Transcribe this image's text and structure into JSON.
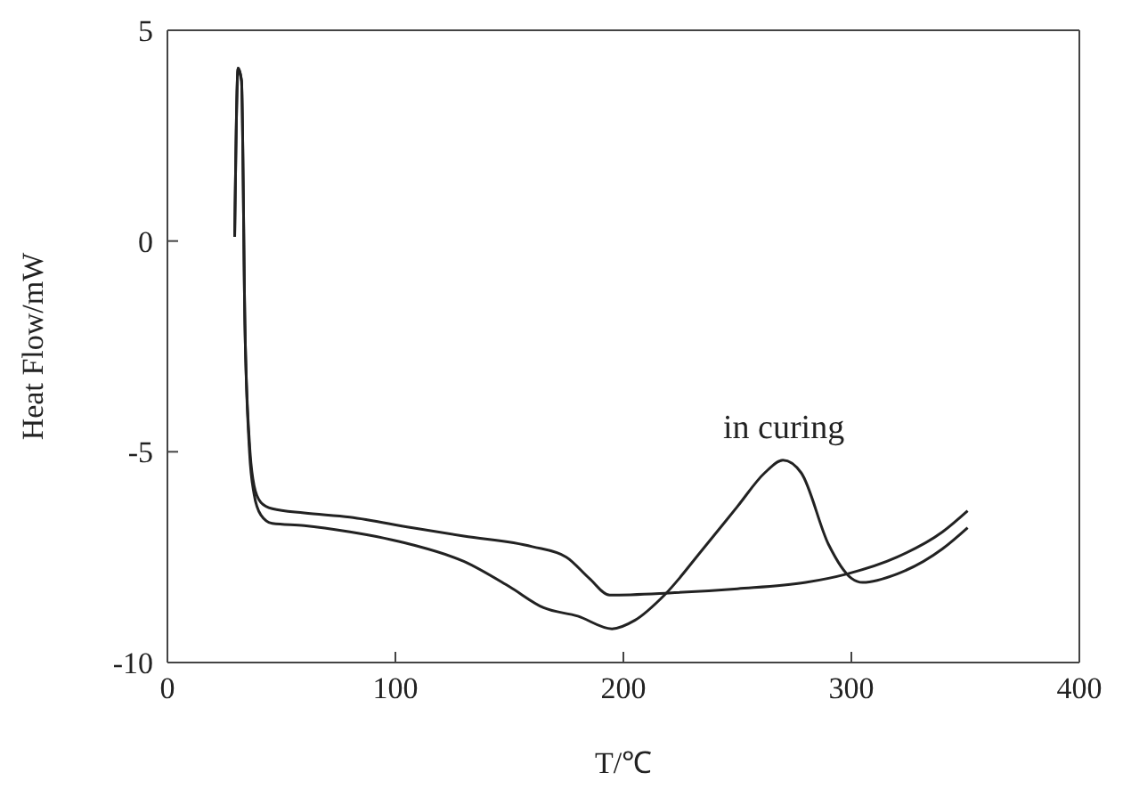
{
  "chart_data": {
    "type": "line",
    "xlabel": "T/℃",
    "ylabel": "Heat Flow/mW",
    "xlim": [
      0,
      400
    ],
    "xticks": [
      0,
      100,
      200,
      300,
      400
    ],
    "ylim": [
      -10,
      5
    ],
    "yticks": [
      -10,
      -5,
      0,
      5
    ],
    "legend": false,
    "marker": "none",
    "line_style": "solid",
    "annotations": [
      "in curing"
    ],
    "series": [
      {
        "color": "#222222",
        "x": [
          29.5,
          31,
          32.5,
          34,
          36,
          38,
          41,
          46,
          60,
          80,
          107,
          130,
          160,
          175,
          185,
          194,
          220,
          250,
          280,
          298,
          320,
          340,
          351
        ],
        "values": [
          0.1,
          4.1,
          3.8,
          -2,
          -4.8,
          -5.8,
          -6.2,
          -6.35,
          -6.45,
          -6.55,
          -6.8,
          -7.0,
          -7.25,
          -7.5,
          -8.0,
          -8.4,
          -8.35,
          -8.25,
          -8.1,
          -7.9,
          -7.5,
          -6.9,
          -6.4
        ]
      },
      {
        "color": "#222222",
        "x": [
          29.5,
          31,
          32.5,
          34,
          36,
          38,
          41,
          46,
          60,
          80,
          107,
          130,
          150,
          165,
          180,
          195,
          205,
          218,
          235,
          250,
          262,
          270,
          278,
          290,
          300,
          305,
          320,
          340,
          351
        ],
        "values": [
          0.1,
          4.1,
          3.8,
          -2,
          -5,
          -6,
          -6.5,
          -6.7,
          -6.75,
          -6.9,
          -7.2,
          -7.6,
          -8.2,
          -8.7,
          -8.9,
          -9.2,
          -9.0,
          -8.4,
          -7.3,
          -6.3,
          -5.5,
          -5.2,
          -5.5,
          -7.2,
          -8.0,
          -8.1,
          -7.9,
          -7.3,
          -6.8
        ]
      }
    ]
  }
}
